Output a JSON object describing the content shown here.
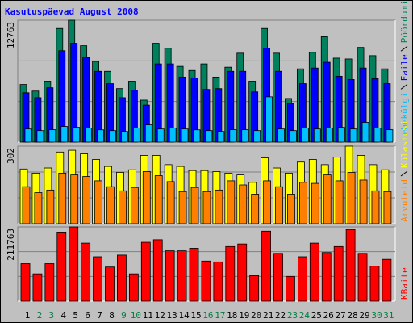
{
  "chart_data": {
    "type": "bar",
    "title": "Kasutuspäevad August 2008",
    "categories": [
      "1",
      "2",
      "3",
      "4",
      "5",
      "6",
      "7",
      "8",
      "9",
      "10",
      "11",
      "12",
      "13",
      "14",
      "15",
      "16",
      "17",
      "18",
      "19",
      "20",
      "21",
      "22",
      "23",
      "24",
      "25",
      "26",
      "27",
      "28",
      "29",
      "30",
      "31"
    ],
    "category_colors": [
      "#000000",
      "#008040",
      "#008040",
      "#000000",
      "#000000",
      "#000000",
      "#000000",
      "#000000",
      "#008040",
      "#008040",
      "#000000",
      "#000000",
      "#000000",
      "#000000",
      "#000000",
      "#008040",
      "#008040",
      "#000000",
      "#000000",
      "#000000",
      "#000000",
      "#000000",
      "#008040",
      "#008040",
      "#000000",
      "#000000",
      "#000000",
      "#000000",
      "#000000",
      "#008040",
      "#008040"
    ],
    "panels": [
      {
        "ylim": [
          0,
          12763
        ],
        "yticks": [
          12763
        ],
        "series": [
          {
            "name": "Pöördumisi",
            "color": "#00805c",
            "values": [
              6036,
              5347,
              6381,
              11900,
              12763,
              10090,
              8451,
              7416,
              5605,
              6381,
              4398,
              10348,
              9831,
              7934,
              7502,
              8192,
              6813,
              7847,
              9313,
              6381,
              11900,
              9313,
              4570,
              7675,
              9400,
              11038,
              8796,
              8710,
              9917,
              9055,
              7675
            ]
          },
          {
            "name": "Faile",
            "color": "#0000ff",
            "values": [
              5174,
              4657,
              5692,
              9572,
              10348,
              8882,
              7416,
              6123,
              4657,
              5433,
              3881,
              8192,
              8192,
              6813,
              6726,
              5519,
              5605,
              7416,
              7416,
              5260,
              9831,
              7416,
              4053,
              6123,
              7761,
              8365,
              6899,
              6554,
              7761,
              6640,
              6123
            ]
          },
          {
            "name": "Lehekülgi",
            "color": "#00c0ff",
            "values": [
              1380,
              1210,
              1300,
              1640,
              1552,
              1470,
              1290,
              1210,
              1120,
              1470,
              1811,
              1380,
              1470,
              1380,
              1290,
              1210,
              1120,
              1300,
              1300,
              1210,
              4743,
              1380,
              1210,
              1470,
              1380,
              1470,
              1550,
              1380,
              2070,
              1470,
              1300
            ]
          }
        ]
      },
      {
        "ylim": [
          0,
          302
        ],
        "yticks": [
          302
        ],
        "series": [
          {
            "name": "Külastusi",
            "color": "#ffff00",
            "values": [
              213,
              197,
              217,
              279,
              286,
              272,
              250,
              223,
              200,
              210,
              266,
              266,
              230,
              223,
              207,
              207,
              203,
              197,
              190,
              161,
              256,
              217,
              197,
              240,
              250,
              230,
              259,
              302,
              266,
              230,
              210
            ]
          },
          {
            "name": "Arvuteid",
            "color": "#ff8000",
            "values": [
              144,
              121,
              131,
              197,
              190,
              184,
              167,
              144,
              128,
              141,
              203,
              187,
              164,
              125,
              141,
              125,
              131,
              167,
              151,
              115,
              167,
              144,
              115,
              161,
              157,
              190,
              167,
              200,
              170,
              128,
              125
            ]
          }
        ]
      },
      {
        "ylim": [
          0,
          211763
        ],
        "yticks": [
          211763
        ],
        "series": [
          {
            "name": "KBaite",
            "color": "#ff0000",
            "values": [
              107000,
              77900,
              107000,
              197000,
              211763,
              165500,
              126600,
              97400,
              131400,
              77900,
              167900,
              175200,
              143600,
              143600,
              150900,
              114400,
              112000,
              155800,
              163100,
              73000,
              199600,
              136300,
              70600,
              126600,
              165500,
              138700,
              155800,
              204400,
              136300,
              99800,
              119300
            ]
          }
        ]
      }
    ]
  }
}
